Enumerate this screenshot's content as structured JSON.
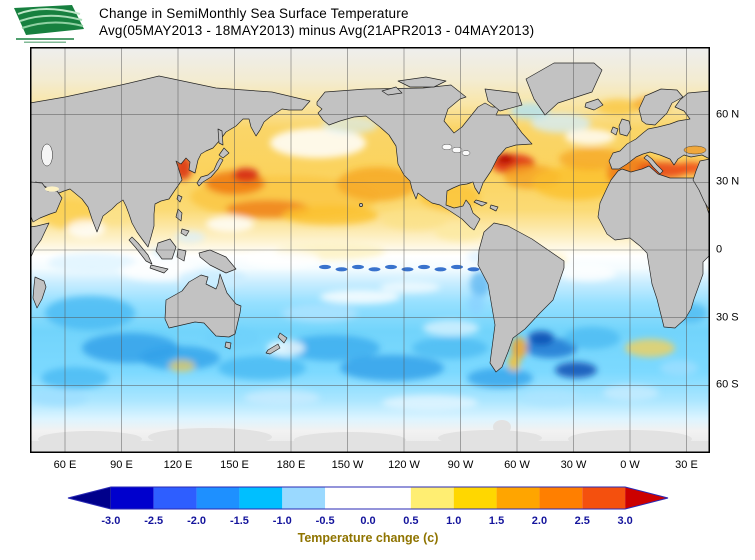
{
  "header": {
    "title_line1": "Change in SemiMonthly Sea Surface Temperature",
    "title_line2": "Avg(05MAY2013 - 18MAY2013) minus Avg(21APR2013 - 04MAY2013)",
    "logo_icon": "green-swoosh-flag-logo"
  },
  "map": {
    "lat_labels": [
      "60 N",
      "30 N",
      "0",
      "30 S",
      "60 S"
    ],
    "lon_labels": [
      "60 E",
      "90 E",
      "120 E",
      "150 E",
      "180 E",
      "150 W",
      "120 W",
      "90 W",
      "60 W",
      "30 W",
      "0 W",
      "30 E"
    ],
    "land_color": "#c2c2c2",
    "border_color": "#000000"
  },
  "colorbar": {
    "caption": "Temperature change  (c)",
    "tick_labels": [
      "-3.0",
      "-2.5",
      "-2.0",
      "-1.5",
      "-1.0",
      "-0.5",
      "0.0",
      "0.5",
      "1.0",
      "1.5",
      "2.0",
      "2.5",
      "3.0"
    ],
    "colors": [
      "#00008b",
      "#0000cd",
      "#2e5eff",
      "#1e90ff",
      "#00bfff",
      "#9ad9ff",
      "#ffffff",
      "#ffffff",
      "#ffee72",
      "#ffd700",
      "#ffa500",
      "#ff7f00",
      "#f4500e",
      "#cc0000"
    ],
    "label_color": "#14149c",
    "caption_color": "#8f7400",
    "outline_color": "#2a2ab4"
  },
  "chart_data": {
    "type": "heatmap",
    "title": "Change in SemiMonthly Sea Surface Temperature",
    "subtitle": "Avg(05MAY2013 - 18MAY2013) minus Avg(21APR2013 - 04MAY2013)",
    "units": "Temperature change (c)",
    "legend_position": "bottom",
    "projection": "equirectangular world map, Pacific-centered (approx 40E eastward through 180 to 40E)",
    "x_ticks": [
      "60 E",
      "90 E",
      "120 E",
      "150 E",
      "180 E",
      "150 W",
      "120 W",
      "90 W",
      "60 W",
      "30 W",
      "0 W",
      "30 E"
    ],
    "y_ticks": [
      "60 N",
      "30 N",
      "0",
      "30 S",
      "60 S"
    ],
    "colorbar_values": [
      -3.0,
      -2.5,
      -2.0,
      -1.5,
      -1.0,
      -0.5,
      0.0,
      0.5,
      1.0,
      1.5,
      2.0,
      2.5,
      3.0
    ],
    "colorbar_colors": [
      "#00008b",
      "#0000cd",
      "#2e5eff",
      "#1e90ff",
      "#00bfff",
      "#9ad9ff",
      "#ffffff",
      "#ffffff",
      "#ffee72",
      "#ffd700",
      "#ffa500",
      "#ff7f00",
      "#f4500e",
      "#cc0000"
    ],
    "pattern_summary": [
      {
        "region": "Northern Hemisphere oceans 10N-60N (Pacific and Atlantic)",
        "change_c": "+0.5 to +1.5",
        "appearance": "widespread yellow/orange warming"
      },
      {
        "region": "NW Pacific off Japan / Yellow Sea / Kuroshio",
        "change_c": "+2 to +3",
        "appearance": "red patches"
      },
      {
        "region": "NW Atlantic off US east coast (Gulf Stream)",
        "change_c": "+2 to +3",
        "appearance": "red patch"
      },
      {
        "region": "NE Atlantic, Iberia/Morocco coast and Mediterranean",
        "change_c": "+1.5 to +3",
        "appearance": "orange-red band"
      },
      {
        "region": "Equatorial band 5N-10S",
        "change_c": "-0.5 to +0.5",
        "appearance": "near-zero, white"
      },
      {
        "region": "Eastern equatorial Pacific cold tongue",
        "change_c": "-1 to -2",
        "appearance": "narrow speckled dark-blue line along equator"
      },
      {
        "region": "Southern Hemisphere oceans 10S-50S",
        "change_c": "-0.5 to -1.5",
        "appearance": "widespread cyan/light-blue cooling"
      },
      {
        "region": "SW Atlantic off Argentina / Brazil-Malvinas confluence",
        "change_c": "-2 to -3",
        "appearance": "dark blue patches next to small coastal warm spots"
      },
      {
        "region": "Poleward of ~60S and Arctic margin",
        "change_c": "no data",
        "appearance": "light gray"
      }
    ]
  }
}
